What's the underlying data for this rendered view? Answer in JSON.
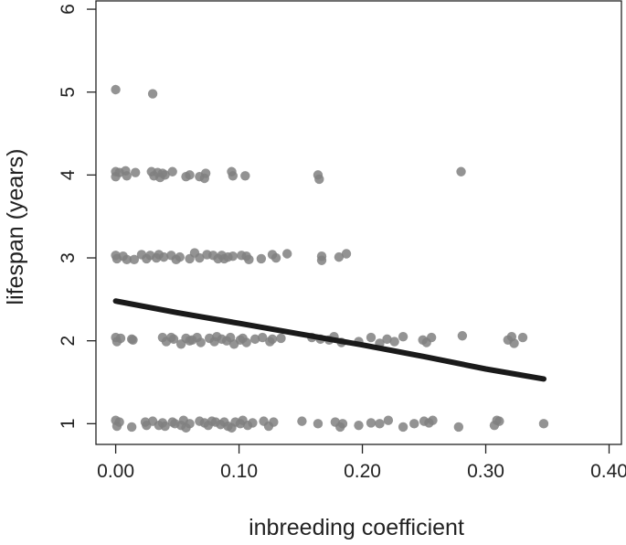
{
  "chart_data": {
    "type": "scatter",
    "xlabel": "inbreeding coefficient",
    "ylabel": "lifespan (years)",
    "xlim": [
      -0.016,
      0.41
    ],
    "ylim": [
      0.75,
      6.1
    ],
    "xticks": [
      0.0,
      0.1,
      0.2,
      0.3,
      0.4
    ],
    "xtick_labels": [
      "0.00",
      "0.10",
      "0.20",
      "0.30",
      "0.40"
    ],
    "yticks": [
      1,
      2,
      3,
      4,
      5,
      6
    ],
    "ytick_labels": [
      "1",
      "2",
      "3",
      "4",
      "5",
      "6"
    ],
    "grid": false,
    "point_color": "#808080",
    "line_color": "#1a1a1a",
    "points": [
      [
        0.0,
        5.03
      ],
      [
        0.03,
        4.98
      ],
      [
        0.0,
        4.04
      ],
      [
        0.0,
        3.98
      ],
      [
        0.003,
        4.03
      ],
      [
        0.008,
        4.05
      ],
      [
        0.009,
        3.99
      ],
      [
        0.016,
        4.03
      ],
      [
        0.029,
        4.04
      ],
      [
        0.031,
        3.99
      ],
      [
        0.034,
        4.03
      ],
      [
        0.036,
        3.97
      ],
      [
        0.038,
        4.02
      ],
      [
        0.04,
        4.0
      ],
      [
        0.046,
        4.04
      ],
      [
        0.057,
        3.98
      ],
      [
        0.06,
        4.0
      ],
      [
        0.068,
        3.98
      ],
      [
        0.072,
        3.96
      ],
      [
        0.073,
        4.02
      ],
      [
        0.094,
        4.04
      ],
      [
        0.095,
        3.99
      ],
      [
        0.105,
        3.99
      ],
      [
        0.164,
        4.0
      ],
      [
        0.165,
        3.95
      ],
      [
        0.28,
        4.04
      ],
      [
        0.0,
        3.03
      ],
      [
        0.001,
        2.99
      ],
      [
        0.006,
        3.02
      ],
      [
        0.009,
        2.98
      ],
      [
        0.015,
        2.98
      ],
      [
        0.021,
        3.04
      ],
      [
        0.025,
        2.99
      ],
      [
        0.028,
        3.03
      ],
      [
        0.033,
        3.0
      ],
      [
        0.035,
        3.04
      ],
      [
        0.039,
        3.01
      ],
      [
        0.045,
        3.03
      ],
      [
        0.049,
        2.98
      ],
      [
        0.052,
        3.01
      ],
      [
        0.06,
        2.99
      ],
      [
        0.064,
        3.06
      ],
      [
        0.068,
        3.0
      ],
      [
        0.074,
        3.04
      ],
      [
        0.079,
        3.03
      ],
      [
        0.083,
        2.99
      ],
      [
        0.086,
        3.03
      ],
      [
        0.088,
        2.99
      ],
      [
        0.091,
        3.01
      ],
      [
        0.095,
        3.02
      ],
      [
        0.102,
        3.03
      ],
      [
        0.106,
        3.02
      ],
      [
        0.108,
        2.98
      ],
      [
        0.118,
        2.99
      ],
      [
        0.127,
        3.04
      ],
      [
        0.13,
        3.0
      ],
      [
        0.139,
        3.05
      ],
      [
        0.167,
        2.97
      ],
      [
        0.167,
        3.02
      ],
      [
        0.181,
        3.01
      ],
      [
        0.187,
        3.05
      ],
      [
        0.0,
        2.04
      ],
      [
        0.001,
        1.99
      ],
      [
        0.004,
        2.03
      ],
      [
        0.013,
        2.02
      ],
      [
        0.014,
        2.01
      ],
      [
        0.038,
        2.04
      ],
      [
        0.041,
        1.99
      ],
      [
        0.045,
        2.04
      ],
      [
        0.047,
        2.02
      ],
      [
        0.053,
        1.96
      ],
      [
        0.057,
        2.03
      ],
      [
        0.06,
        2.0
      ],
      [
        0.062,
        2.01
      ],
      [
        0.066,
        2.04
      ],
      [
        0.069,
        1.98
      ],
      [
        0.076,
        2.03
      ],
      [
        0.08,
        1.99
      ],
      [
        0.082,
        2.05
      ],
      [
        0.086,
        2.02
      ],
      [
        0.09,
        2.0
      ],
      [
        0.093,
        2.04
      ],
      [
        0.096,
        1.96
      ],
      [
        0.101,
        2.01
      ],
      [
        0.103,
        2.03
      ],
      [
        0.106,
        1.98
      ],
      [
        0.113,
        2.02
      ],
      [
        0.119,
        2.04
      ],
      [
        0.125,
        1.99
      ],
      [
        0.127,
        2.02
      ],
      [
        0.134,
        2.03
      ],
      [
        0.159,
        2.04
      ],
      [
        0.166,
        2.02
      ],
      [
        0.173,
        2.01
      ],
      [
        0.177,
        2.05
      ],
      [
        0.183,
        1.98
      ],
      [
        0.197,
        1.99
      ],
      [
        0.207,
        2.04
      ],
      [
        0.214,
        1.97
      ],
      [
        0.22,
        2.02
      ],
      [
        0.226,
        1.99
      ],
      [
        0.233,
        2.05
      ],
      [
        0.249,
        2.01
      ],
      [
        0.252,
        1.98
      ],
      [
        0.256,
        2.04
      ],
      [
        0.281,
        2.06
      ],
      [
        0.318,
        2.01
      ],
      [
        0.321,
        2.05
      ],
      [
        0.323,
        1.97
      ],
      [
        0.33,
        2.04
      ],
      [
        0.0,
        1.04
      ],
      [
        0.001,
        0.97
      ],
      [
        0.003,
        1.02
      ],
      [
        0.013,
        0.96
      ],
      [
        0.024,
        1.02
      ],
      [
        0.025,
        0.98
      ],
      [
        0.03,
        1.03
      ],
      [
        0.035,
        0.98
      ],
      [
        0.038,
        1.01
      ],
      [
        0.04,
        0.97
      ],
      [
        0.046,
        1.02
      ],
      [
        0.048,
        1.0
      ],
      [
        0.053,
        0.98
      ],
      [
        0.055,
        1.04
      ],
      [
        0.057,
        0.95
      ],
      [
        0.06,
        1.0
      ],
      [
        0.068,
        1.03
      ],
      [
        0.072,
        1.01
      ],
      [
        0.075,
        0.98
      ],
      [
        0.078,
        1.03
      ],
      [
        0.081,
        1.02
      ],
      [
        0.085,
        0.99
      ],
      [
        0.088,
        1.02
      ],
      [
        0.091,
        0.97
      ],
      [
        0.094,
        0.95
      ],
      [
        0.097,
        1.02
      ],
      [
        0.101,
        1.0
      ],
      [
        0.103,
        1.04
      ],
      [
        0.107,
        0.98
      ],
      [
        0.111,
        1.01
      ],
      [
        0.12,
        1.03
      ],
      [
        0.124,
        0.97
      ],
      [
        0.128,
        1.02
      ],
      [
        0.151,
        1.03
      ],
      [
        0.164,
        1.0
      ],
      [
        0.178,
        1.02
      ],
      [
        0.182,
        0.96
      ],
      [
        0.184,
        1.0
      ],
      [
        0.197,
        0.98
      ],
      [
        0.207,
        1.01
      ],
      [
        0.214,
        1.0
      ],
      [
        0.221,
        1.04
      ],
      [
        0.233,
        0.96
      ],
      [
        0.242,
        1.0
      ],
      [
        0.25,
        1.03
      ],
      [
        0.254,
        1.01
      ],
      [
        0.257,
        1.04
      ],
      [
        0.278,
        0.96
      ],
      [
        0.307,
        0.98
      ],
      [
        0.309,
        1.04
      ],
      [
        0.311,
        1.03
      ],
      [
        0.347,
        1.0
      ]
    ],
    "fit_line": [
      [
        0.0,
        2.48
      ],
      [
        0.05,
        2.34
      ],
      [
        0.1,
        2.21
      ],
      [
        0.15,
        2.08
      ],
      [
        0.2,
        1.95
      ],
      [
        0.25,
        1.81
      ],
      [
        0.3,
        1.66
      ],
      [
        0.347,
        1.54
      ]
    ]
  }
}
